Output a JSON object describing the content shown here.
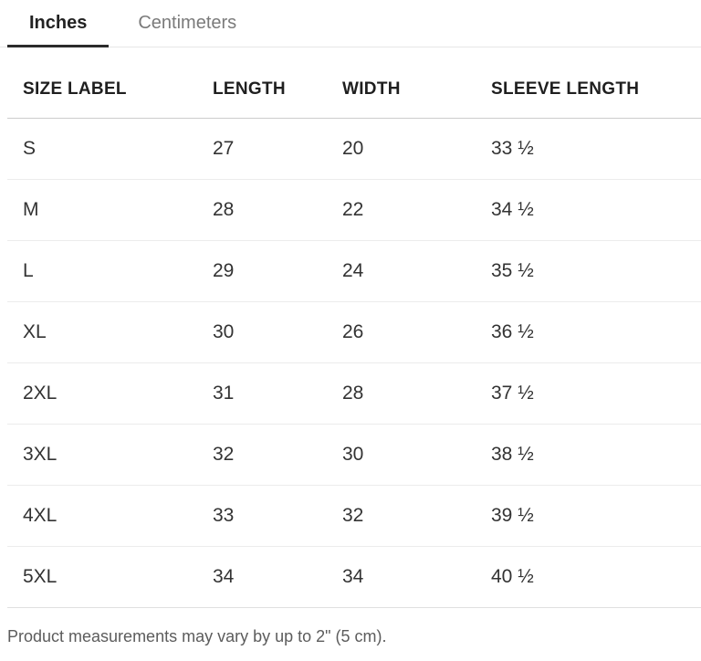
{
  "tabs": {
    "items": [
      {
        "label": "Inches",
        "active": true
      },
      {
        "label": "Centimeters",
        "active": false
      }
    ]
  },
  "size_guide": {
    "columns": [
      "SIZE LABEL",
      "LENGTH",
      "WIDTH",
      "SLEEVE LENGTH"
    ],
    "rows": [
      [
        "S",
        "27",
        "20",
        "33 ½"
      ],
      [
        "M",
        "28",
        "22",
        "34 ½"
      ],
      [
        "L",
        "29",
        "24",
        "35 ½"
      ],
      [
        "XL",
        "30",
        "26",
        "36 ½"
      ],
      [
        "2XL",
        "31",
        "28",
        "37 ½"
      ],
      [
        "3XL",
        "32",
        "30",
        "38 ½"
      ],
      [
        "4XL",
        "33",
        "32",
        "39 ½"
      ],
      [
        "5XL",
        "34",
        "34",
        "40 ½"
      ]
    ]
  },
  "footer": {
    "note": "Product measurements may vary by up to 2\" (5 cm)."
  },
  "colors": {
    "background": "#ffffff",
    "active_tab_text": "#222222",
    "active_tab_indicator": "#2b2b2b",
    "inactive_tab_text": "#7a7a7a",
    "header_text": "#1f1f1f",
    "cell_text": "#333333",
    "footer_text": "#5c5c5c",
    "header_border": "#cccccc",
    "row_border": "#ececec",
    "tabbar_border": "#e6e6e6"
  }
}
